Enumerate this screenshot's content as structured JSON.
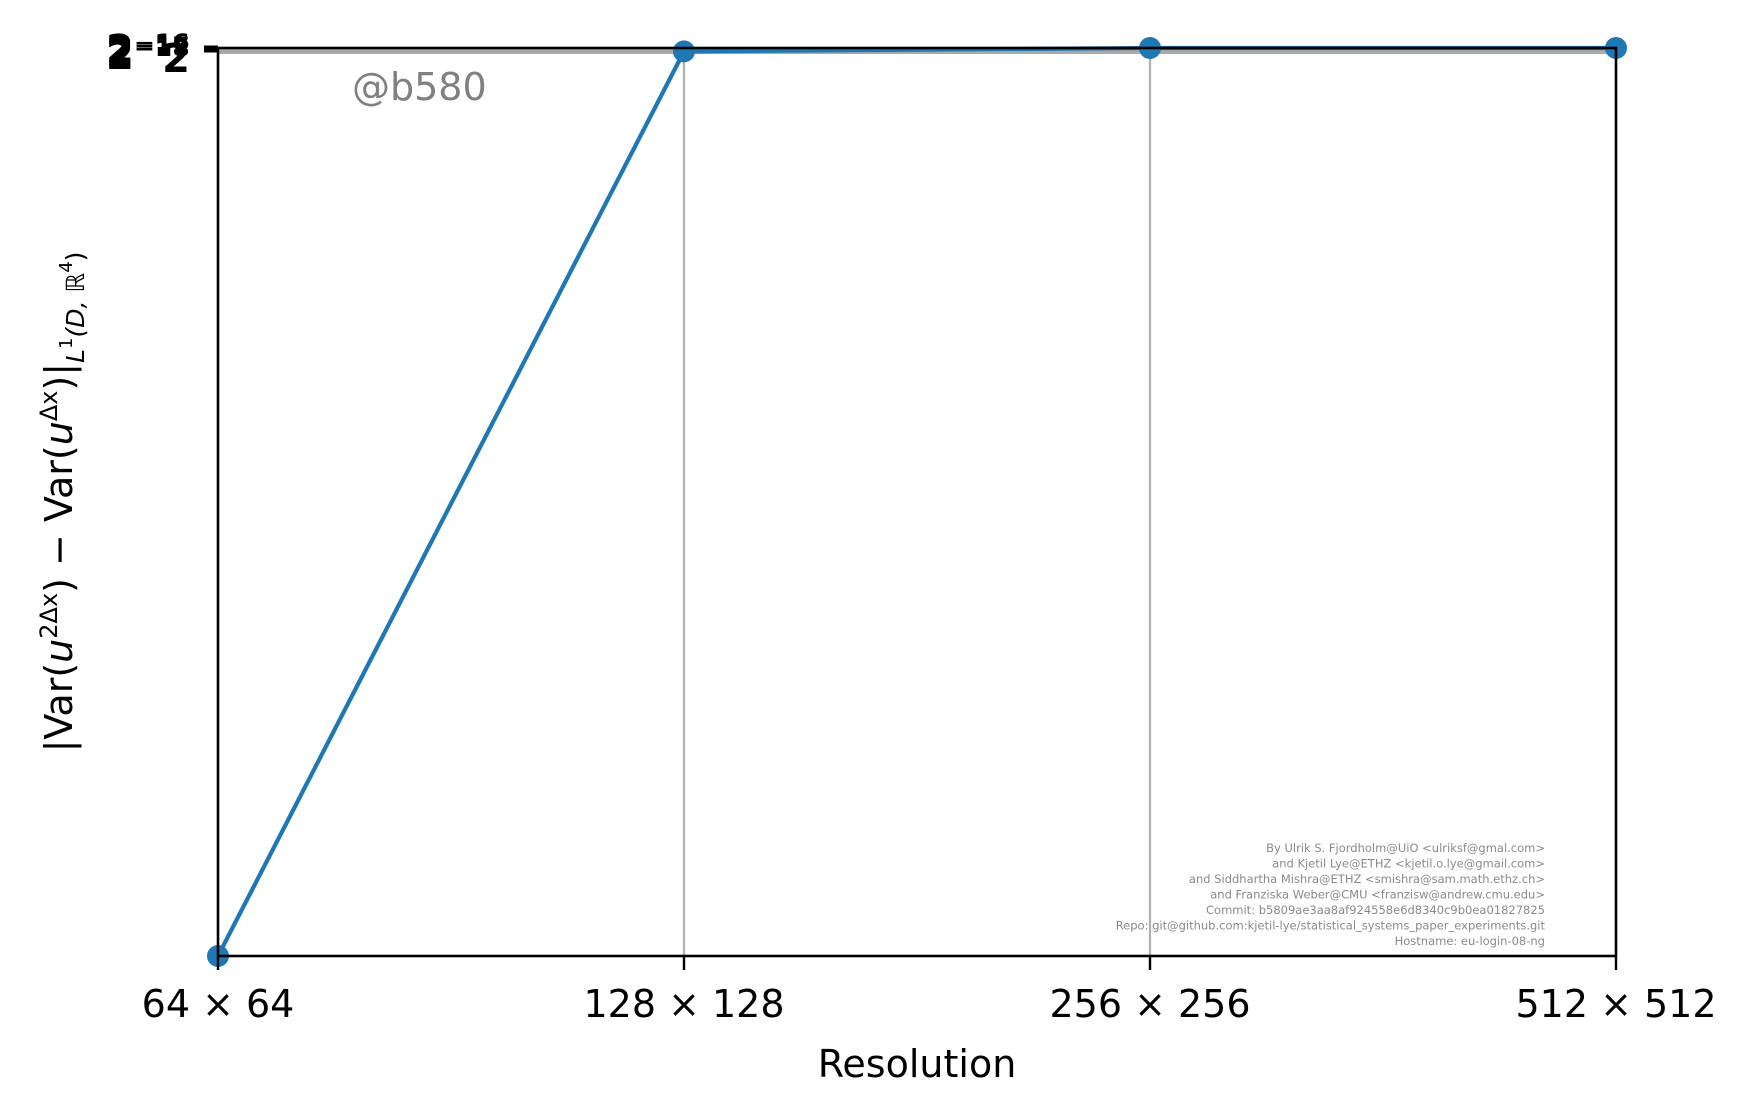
{
  "chart_data": {
    "type": "line",
    "title": "",
    "xlabel": "Resolution",
    "ylabel_parts": {
      "open": "|Var(",
      "u1": "u",
      "sup1": "2Δx",
      "mid": ") − Var(",
      "u2": "u",
      "sup2": "Δx",
      "close": ")|",
      "sub": "L",
      "sub_sup": "1",
      "sub_rest": "(D, ℝ",
      "sub_rest_sup": "4",
      "sub_end": ")"
    },
    "x_scale": "log2",
    "y_scale": "log2",
    "categories": [
      "64 × 64",
      "128 × 128",
      "256 × 256",
      "512 × 512"
    ],
    "x": [
      64,
      128,
      256,
      512
    ],
    "series": [
      {
        "color": "#1f77b4",
        "values": [
          3.75e-06,
          7.61e-06,
          7.63e-06,
          7.63e-06
        ]
      }
    ],
    "ylim": [
      3.75e-06,
      7.63e-06
    ],
    "y_tick_labels_overlapping": [
      "2",
      "2⁻¹⁸",
      "2⁻¹⁷",
      "2⁻¹⁶"
    ],
    "grid": {
      "x": true,
      "y": false
    },
    "grid_color": "#b0b0b0",
    "reference_line": {
      "y": 7.63e-06,
      "color": "#a9a9a9"
    },
    "legend": "none",
    "watermark": "@b580",
    "credits": [
      "By Ulrik S. Fjordholm@UiO <ulriksf@gmal.com>",
      "and Kjetil Lye@ETHZ <kjetil.o.lye@gmail.com>",
      "and Siddhartha Mishra@ETHZ <smishra@sam.math.ethz.ch>",
      "and Franziska Weber@CMU <franzisw@andrew.cmu.edu>",
      "Commit: b5809ae3aa8af924558e6d8340c9b0ea01827825",
      "Repo: git@github.com:kjetil-lye/statistical_systems_paper_experiments.git",
      "Hostname: eu-login-08-ng"
    ]
  }
}
